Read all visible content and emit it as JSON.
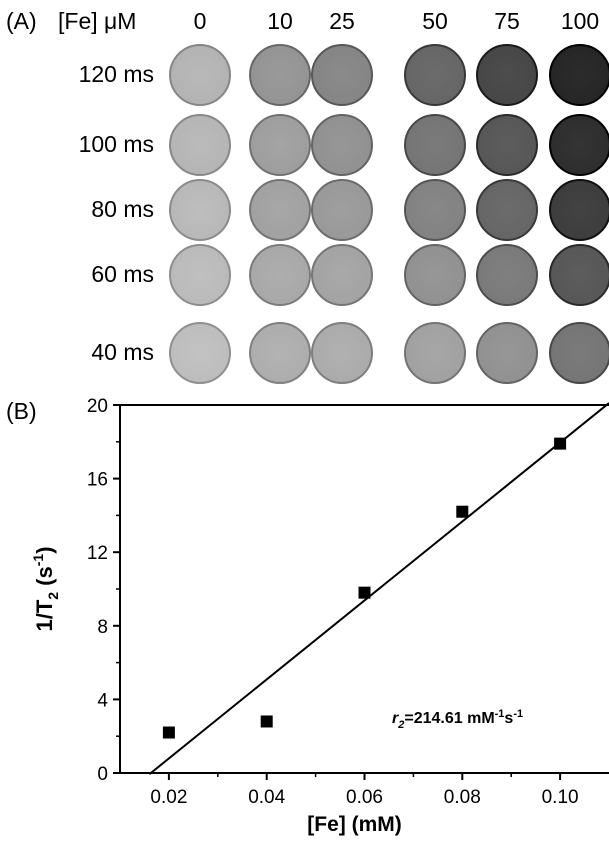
{
  "panel_a": {
    "label": "(A)",
    "conc_header": "[Fe] μM",
    "concentrations": [
      "0",
      "10",
      "25",
      "50",
      "75",
      "100"
    ],
    "echo_times": [
      "120 ms",
      "100 ms",
      "80 ms",
      "60 ms",
      "40 ms"
    ],
    "well_intensity": [
      [
        0.7,
        0.58,
        0.52,
        0.4,
        0.28,
        0.15
      ],
      [
        0.71,
        0.62,
        0.57,
        0.46,
        0.34,
        0.18
      ],
      [
        0.72,
        0.63,
        0.6,
        0.51,
        0.4,
        0.24
      ],
      [
        0.73,
        0.66,
        0.64,
        0.57,
        0.48,
        0.34
      ],
      [
        0.74,
        0.68,
        0.67,
        0.63,
        0.57,
        0.46
      ]
    ]
  },
  "panel_b": {
    "label": "(B)",
    "annotation": {
      "symbol": "r",
      "subscript": "2",
      "text": "=214.61 mM",
      "sup1": "-1",
      "mid": "s",
      "sup2": "-1"
    }
  },
  "chart_data": {
    "type": "scatter",
    "xlabel": "[Fe] (mM)",
    "ylabel": "1/T2 (s-1)",
    "xlim": [
      0.01,
      0.11
    ],
    "ylim": [
      0,
      20
    ],
    "x_ticks": [
      "0.02",
      "0.04",
      "0.06",
      "0.08",
      "0.10"
    ],
    "y_ticks": [
      "0",
      "4",
      "8",
      "12",
      "16",
      "20"
    ],
    "points": [
      {
        "x": 0.02,
        "y": 2.2
      },
      {
        "x": 0.04,
        "y": 2.8
      },
      {
        "x": 0.06,
        "y": 9.8
      },
      {
        "x": 0.08,
        "y": 14.2
      },
      {
        "x": 0.1,
        "y": 17.9
      }
    ],
    "fit_line": {
      "slope": 214.61,
      "intercept": -3.5,
      "x_range": [
        0.016,
        0.11
      ]
    },
    "marker_color": "#000000",
    "line_color": "#000000"
  }
}
